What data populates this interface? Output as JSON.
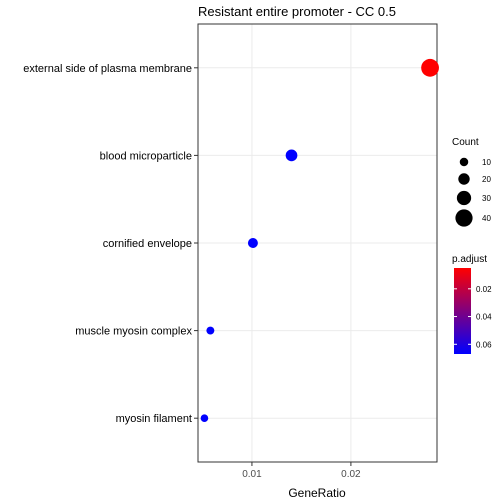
{
  "chart_data": {
    "type": "scatter",
    "title": "Resistant entire promoter - CC 0.5",
    "xlabel": "GeneRatio",
    "ylabel": "",
    "xlim": [
      0.00455,
      0.0287
    ],
    "x_ticks": [
      {
        "value": 0.01,
        "label": "0.01"
      },
      {
        "value": 0.02,
        "label": "0.02"
      }
    ],
    "categories": [
      "external side of plasma membrane",
      "blood microparticle",
      "cornified envelope",
      "muscle myosin complex",
      "myosin filament"
    ],
    "points": [
      {
        "term": "external side of plasma membrane",
        "gene_ratio": 0.028,
        "count": 42,
        "p_adjust": 0.005
      },
      {
        "term": "blood microparticle",
        "gene_ratio": 0.014,
        "count": 21,
        "p_adjust": 0.067
      },
      {
        "term": "cornified envelope",
        "gene_ratio": 0.0101,
        "count": 15,
        "p_adjust": 0.067
      },
      {
        "term": "muscle myosin complex",
        "gene_ratio": 0.0058,
        "count": 8,
        "p_adjust": 0.067
      },
      {
        "term": "myosin filament",
        "gene_ratio": 0.0052,
        "count": 7,
        "p_adjust": 0.067
      }
    ],
    "grid": true,
    "legends": {
      "size": {
        "title": "Count",
        "entries": [
          {
            "value": 10,
            "label": "10"
          },
          {
            "value": 20,
            "label": "20"
          },
          {
            "value": 30,
            "label": "30"
          },
          {
            "value": 40,
            "label": "40"
          }
        ]
      },
      "color": {
        "title": "p.adjust",
        "range": [
          0.005,
          0.067
        ],
        "low_color": "#ff0000",
        "high_color": "#0000ff",
        "ticks": [
          {
            "value": 0.02,
            "label": "0.02"
          },
          {
            "value": 0.04,
            "label": "0.04"
          },
          {
            "value": 0.06,
            "label": "0.06"
          }
        ]
      },
      "placement": "right"
    }
  }
}
